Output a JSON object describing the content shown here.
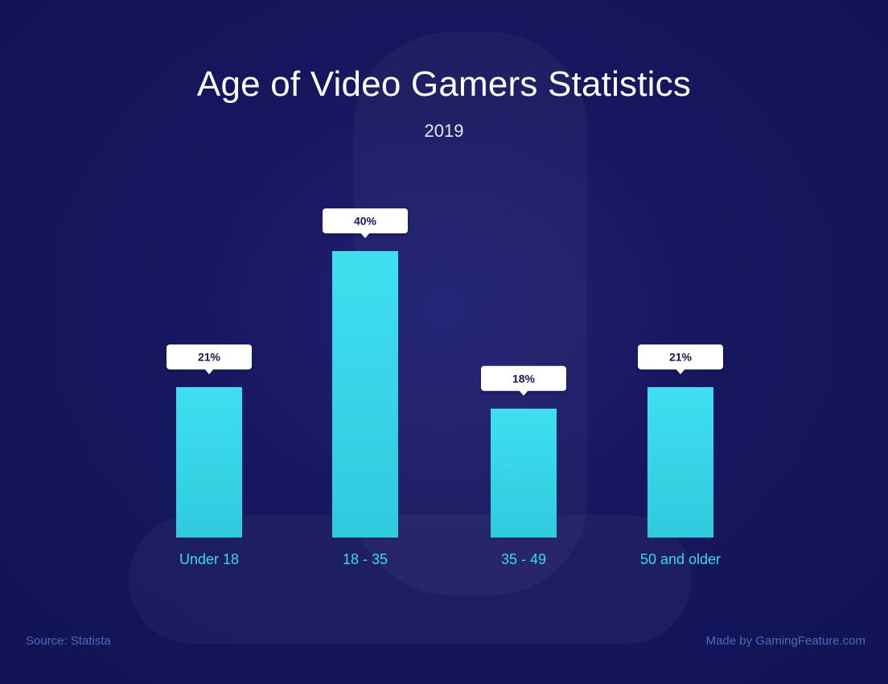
{
  "header": {
    "title": "Age of Video Gamers Statistics",
    "subtitle": "2019"
  },
  "footer": {
    "source": "Source: Statista",
    "credit": "Made by GamingFeature.com"
  },
  "colors": {
    "bar": "#3ad8ea",
    "background": "#15155a",
    "label_text": "#3ad8ea",
    "callout_bg": "#ffffff",
    "callout_text": "#15155a"
  },
  "chart_data": {
    "type": "bar",
    "title": "Age of Video Gamers Statistics",
    "subtitle": "2019",
    "categories": [
      "Under 18",
      "18 - 35",
      "35 - 49",
      "50 and older"
    ],
    "values": [
      21,
      40,
      18,
      21
    ],
    "value_labels": [
      "21%",
      "40%",
      "18%",
      "21%"
    ],
    "unit": "%",
    "ylim": [
      0,
      40
    ],
    "grid": false,
    "xlabel": "",
    "ylabel": ""
  }
}
